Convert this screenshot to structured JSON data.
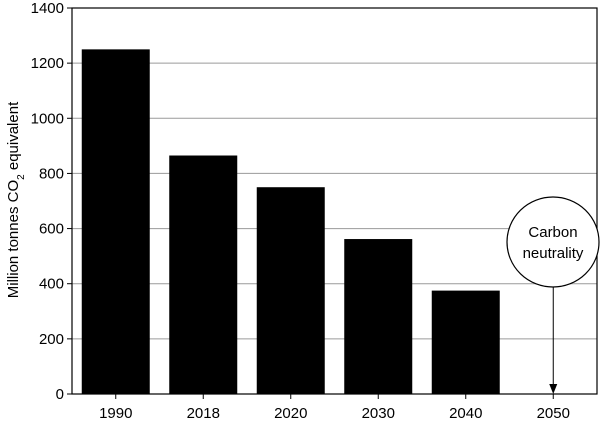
{
  "chart_data": {
    "type": "bar",
    "categories": [
      "1990",
      "2018",
      "2020",
      "2030",
      "2040",
      "2050"
    ],
    "values": [
      1250,
      865,
      750,
      562,
      375,
      0
    ],
    "ylabel": "Million tonnes CO2 equivalent",
    "ylabel_parts": [
      "Million tonnes CO",
      "2",
      " equivalent"
    ],
    "ylim": [
      0,
      1400
    ],
    "yticks": [
      "0",
      "200",
      "400",
      "600",
      "800",
      "1000",
      "1200",
      "1400"
    ],
    "grid": true,
    "bar_color": "#000000",
    "gridline_color": "#9a9a9a",
    "annotation": {
      "category": "2050",
      "lines": [
        "Carbon",
        "neutrality"
      ],
      "shape": "ellipse",
      "arrow_to": 0
    }
  }
}
